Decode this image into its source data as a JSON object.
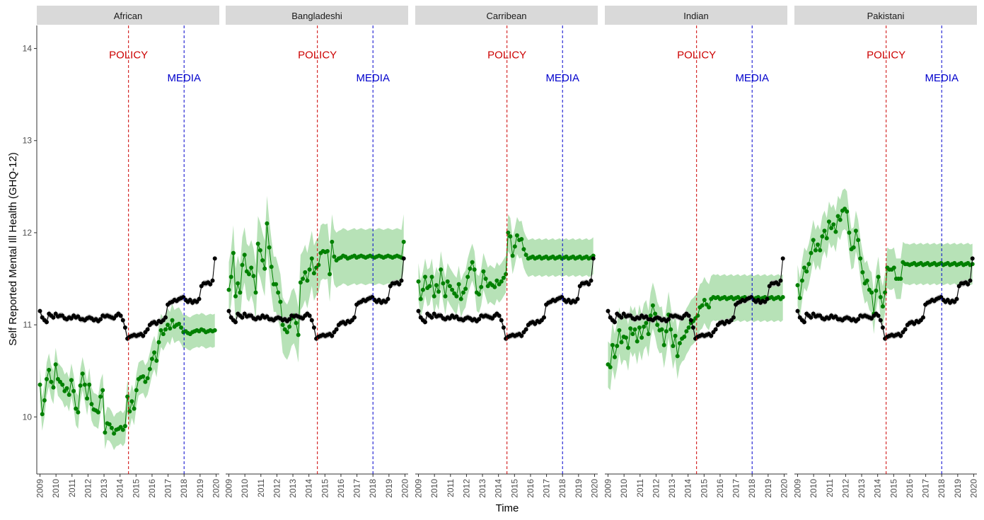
{
  "chart_data": {
    "type": "line",
    "facet_panels": [
      "African",
      "Bangladeshi",
      "Carribean",
      "Indian",
      "Pakistani"
    ],
    "xlabel": "Time",
    "ylabel": "Self Reported Mental Ill Health (GHQ-12)",
    "x_ticks": [
      "2009",
      "2010",
      "2011",
      "2012",
      "2013",
      "2014",
      "2015",
      "2016",
      "2017",
      "2018",
      "2019",
      "2020"
    ],
    "y_ticks": [
      10,
      11,
      12,
      13,
      14
    ],
    "xlim": [
      2008.8,
      2020.2
    ],
    "ylim": [
      9.38,
      14.25
    ],
    "grid": false,
    "annotations": [
      {
        "label": "POLICY",
        "x": 2014.53,
        "y_text": 13.93,
        "color": "#cc0000"
      },
      {
        "label": "MEDIA",
        "x": 2018.0,
        "y_text": 13.68,
        "color": "#0000cc"
      }
    ],
    "colors": {
      "reference": "#000000",
      "group": "#008000",
      "group_band": "#9fd89f",
      "reference_band": "#b3b3b3",
      "strip": "#d9d9d9"
    },
    "reference_series": {
      "x": [
        2009.0,
        2009.14,
        2009.28,
        2009.42,
        2009.56,
        2009.7,
        2009.84,
        2009.98,
        2010.12,
        2010.26,
        2010.4,
        2010.54,
        2010.68,
        2010.82,
        2010.96,
        2011.1,
        2011.24,
        2011.38,
        2011.52,
        2011.66,
        2011.8,
        2011.94,
        2012.08,
        2012.22,
        2012.36,
        2012.5,
        2012.64,
        2012.78,
        2012.92,
        2013.06,
        2013.2,
        2013.34,
        2013.48,
        2013.62,
        2013.76,
        2013.9,
        2014.04,
        2014.18,
        2014.32,
        2014.46,
        2014.6,
        2014.74,
        2014.88,
        2015.02,
        2015.16,
        2015.3,
        2015.44,
        2015.58,
        2015.72,
        2015.86,
        2016.0,
        2016.14,
        2016.28,
        2016.42,
        2016.56,
        2016.7,
        2016.84,
        2016.98,
        2017.12,
        2017.26,
        2017.4,
        2017.54,
        2017.68,
        2017.82,
        2017.96,
        2018.1,
        2018.24,
        2018.38,
        2018.52,
        2018.66,
        2018.8,
        2018.94,
        2019.08,
        2019.22,
        2019.36,
        2019.5,
        2019.64,
        2019.78,
        2019.92
      ],
      "y": [
        11.15,
        11.08,
        11.05,
        11.03,
        11.12,
        11.1,
        11.08,
        11.12,
        11.09,
        11.1,
        11.1,
        11.07,
        11.06,
        11.08,
        11.07,
        11.1,
        11.08,
        11.09,
        11.06,
        11.06,
        11.05,
        11.07,
        11.08,
        11.07,
        11.05,
        11.06,
        11.04,
        11.06,
        11.1,
        11.09,
        11.1,
        11.09,
        11.08,
        11.07,
        11.1,
        11.12,
        11.1,
        11.05,
        10.97,
        10.85,
        10.87,
        10.88,
        10.89,
        10.88,
        10.89,
        10.9,
        10.88,
        10.92,
        10.95,
        11.0,
        11.02,
        11.03,
        11.01,
        11.04,
        11.03,
        11.05,
        11.08,
        11.22,
        11.24,
        11.25,
        11.27,
        11.26,
        11.28,
        11.29,
        11.3,
        11.27,
        11.25,
        11.27,
        11.24,
        11.26,
        11.25,
        11.28,
        11.42,
        11.45,
        11.45,
        11.46,
        11.44,
        11.48,
        11.72
      ]
    },
    "series": [
      {
        "panel": "African",
        "y": [
          10.35,
          10.03,
          10.18,
          10.41,
          10.51,
          10.38,
          10.32,
          10.57,
          10.41,
          10.38,
          10.35,
          10.28,
          10.31,
          10.24,
          10.4,
          10.28,
          10.09,
          10.05,
          10.34,
          10.47,
          10.35,
          10.2,
          10.35,
          10.14,
          10.08,
          10.07,
          10.05,
          10.22,
          10.29,
          9.83,
          9.93,
          9.92,
          9.88,
          9.82,
          9.86,
          9.87,
          9.89,
          9.86,
          9.9,
          10.22,
          10.06,
          10.17,
          10.09,
          10.29,
          10.41,
          10.43,
          10.44,
          10.38,
          10.42,
          10.52,
          10.63,
          10.7,
          10.61,
          10.81,
          10.94,
          10.9,
          10.95,
          11.0,
          10.96,
          11.05,
          10.98,
          11.0,
          11.01,
          10.97,
          10.92,
          10.93,
          10.91,
          10.9,
          10.92,
          10.93,
          10.94,
          10.93,
          10.95,
          10.94,
          10.92,
          10.93,
          10.94,
          10.93,
          10.94
        ],
        "band_half_width": 0.18
      },
      {
        "panel": "Bangladeshi",
        "y": [
          11.38,
          11.52,
          11.78,
          11.31,
          11.45,
          11.35,
          11.65,
          11.76,
          11.58,
          11.55,
          11.62,
          11.53,
          11.35,
          11.88,
          11.81,
          11.7,
          11.61,
          12.1,
          11.84,
          11.63,
          11.44,
          11.44,
          11.35,
          11.25,
          11.0,
          10.95,
          10.92,
          10.98,
          11.07,
          11.1,
          11.02,
          10.89,
          11.46,
          11.5,
          11.57,
          11.48,
          11.6,
          11.72,
          11.56,
          11.62,
          11.65,
          11.78,
          11.8,
          11.79,
          11.8,
          11.55,
          11.9,
          11.74,
          11.7,
          11.72,
          11.73,
          11.75,
          11.74,
          11.72,
          11.73,
          11.74,
          11.75,
          11.73,
          11.74,
          11.75,
          11.74,
          11.73,
          11.74,
          11.75,
          11.74,
          11.73,
          11.74,
          11.75,
          11.74,
          11.73,
          11.74,
          11.75,
          11.74,
          11.73,
          11.74,
          11.75,
          11.74,
          11.73,
          11.9
        ],
        "band_half_width": 0.3
      },
      {
        "panel": "Carribean",
        "y": [
          11.47,
          11.28,
          11.38,
          11.52,
          11.4,
          11.42,
          11.52,
          11.31,
          11.43,
          11.36,
          11.6,
          11.45,
          11.31,
          11.47,
          11.42,
          11.38,
          11.34,
          11.31,
          11.44,
          11.28,
          11.35,
          11.39,
          11.52,
          11.61,
          11.68,
          11.6,
          11.35,
          11.33,
          11.41,
          11.58,
          11.5,
          11.42,
          11.45,
          11.43,
          11.41,
          11.48,
          11.44,
          11.47,
          11.51,
          11.55,
          12.0,
          11.96,
          11.75,
          11.85,
          11.97,
          11.92,
          11.93,
          11.82,
          11.76,
          11.72,
          11.73,
          11.74,
          11.72,
          11.73,
          11.74,
          11.72,
          11.73,
          11.74,
          11.72,
          11.73,
          11.74,
          11.72,
          11.73,
          11.74,
          11.72,
          11.73,
          11.74,
          11.72,
          11.73,
          11.74,
          11.72,
          11.73,
          11.74,
          11.72,
          11.73,
          11.74,
          11.72,
          11.73,
          11.75
        ],
        "band_half_width": 0.2
      },
      {
        "panel": "Indian",
        "y": [
          10.57,
          10.54,
          10.78,
          10.65,
          10.77,
          10.94,
          10.81,
          10.87,
          10.86,
          10.75,
          10.96,
          10.9,
          10.95,
          10.82,
          10.97,
          10.86,
          10.98,
          11.02,
          10.9,
          11.1,
          11.21,
          11.12,
          11.0,
          10.94,
          10.95,
          10.78,
          10.93,
          11.11,
          10.95,
          10.77,
          10.88,
          10.66,
          10.8,
          10.85,
          10.87,
          10.93,
          10.97,
          11.02,
          11.04,
          11.07,
          11.1,
          11.19,
          11.21,
          11.27,
          11.22,
          11.19,
          11.28,
          11.3,
          11.29,
          11.3,
          11.28,
          11.29,
          11.3,
          11.28,
          11.29,
          11.3,
          11.28,
          11.29,
          11.3,
          11.28,
          11.29,
          11.3,
          11.28,
          11.29,
          11.3,
          11.28,
          11.29,
          11.3,
          11.28,
          11.29,
          11.3,
          11.28,
          11.29,
          11.3,
          11.28,
          11.29,
          11.3,
          11.28,
          11.3
        ],
        "band_half_width": 0.25
      },
      {
        "panel": "Pakistani",
        "y": [
          11.43,
          11.29,
          11.48,
          11.62,
          11.58,
          11.66,
          11.78,
          11.92,
          11.81,
          11.87,
          11.81,
          11.96,
          12.02,
          11.94,
          12.12,
          12.05,
          12.09,
          12.01,
          12.18,
          12.14,
          12.24,
          12.26,
          12.23,
          12.0,
          11.82,
          11.84,
          12.02,
          11.92,
          11.72,
          11.57,
          11.45,
          11.48,
          11.38,
          11.35,
          11.12,
          11.37,
          11.52,
          11.3,
          11.2,
          11.35,
          11.62,
          11.6,
          11.6,
          11.62,
          11.5,
          11.5,
          11.5,
          11.68,
          11.66,
          11.66,
          11.65,
          11.66,
          11.67,
          11.65,
          11.66,
          11.67,
          11.65,
          11.66,
          11.67,
          11.65,
          11.66,
          11.67,
          11.65,
          11.66,
          11.67,
          11.65,
          11.66,
          11.67,
          11.65,
          11.66,
          11.67,
          11.65,
          11.66,
          11.67,
          11.65,
          11.66,
          11.67,
          11.65,
          11.66
        ],
        "band_half_width": 0.22
      }
    ]
  }
}
